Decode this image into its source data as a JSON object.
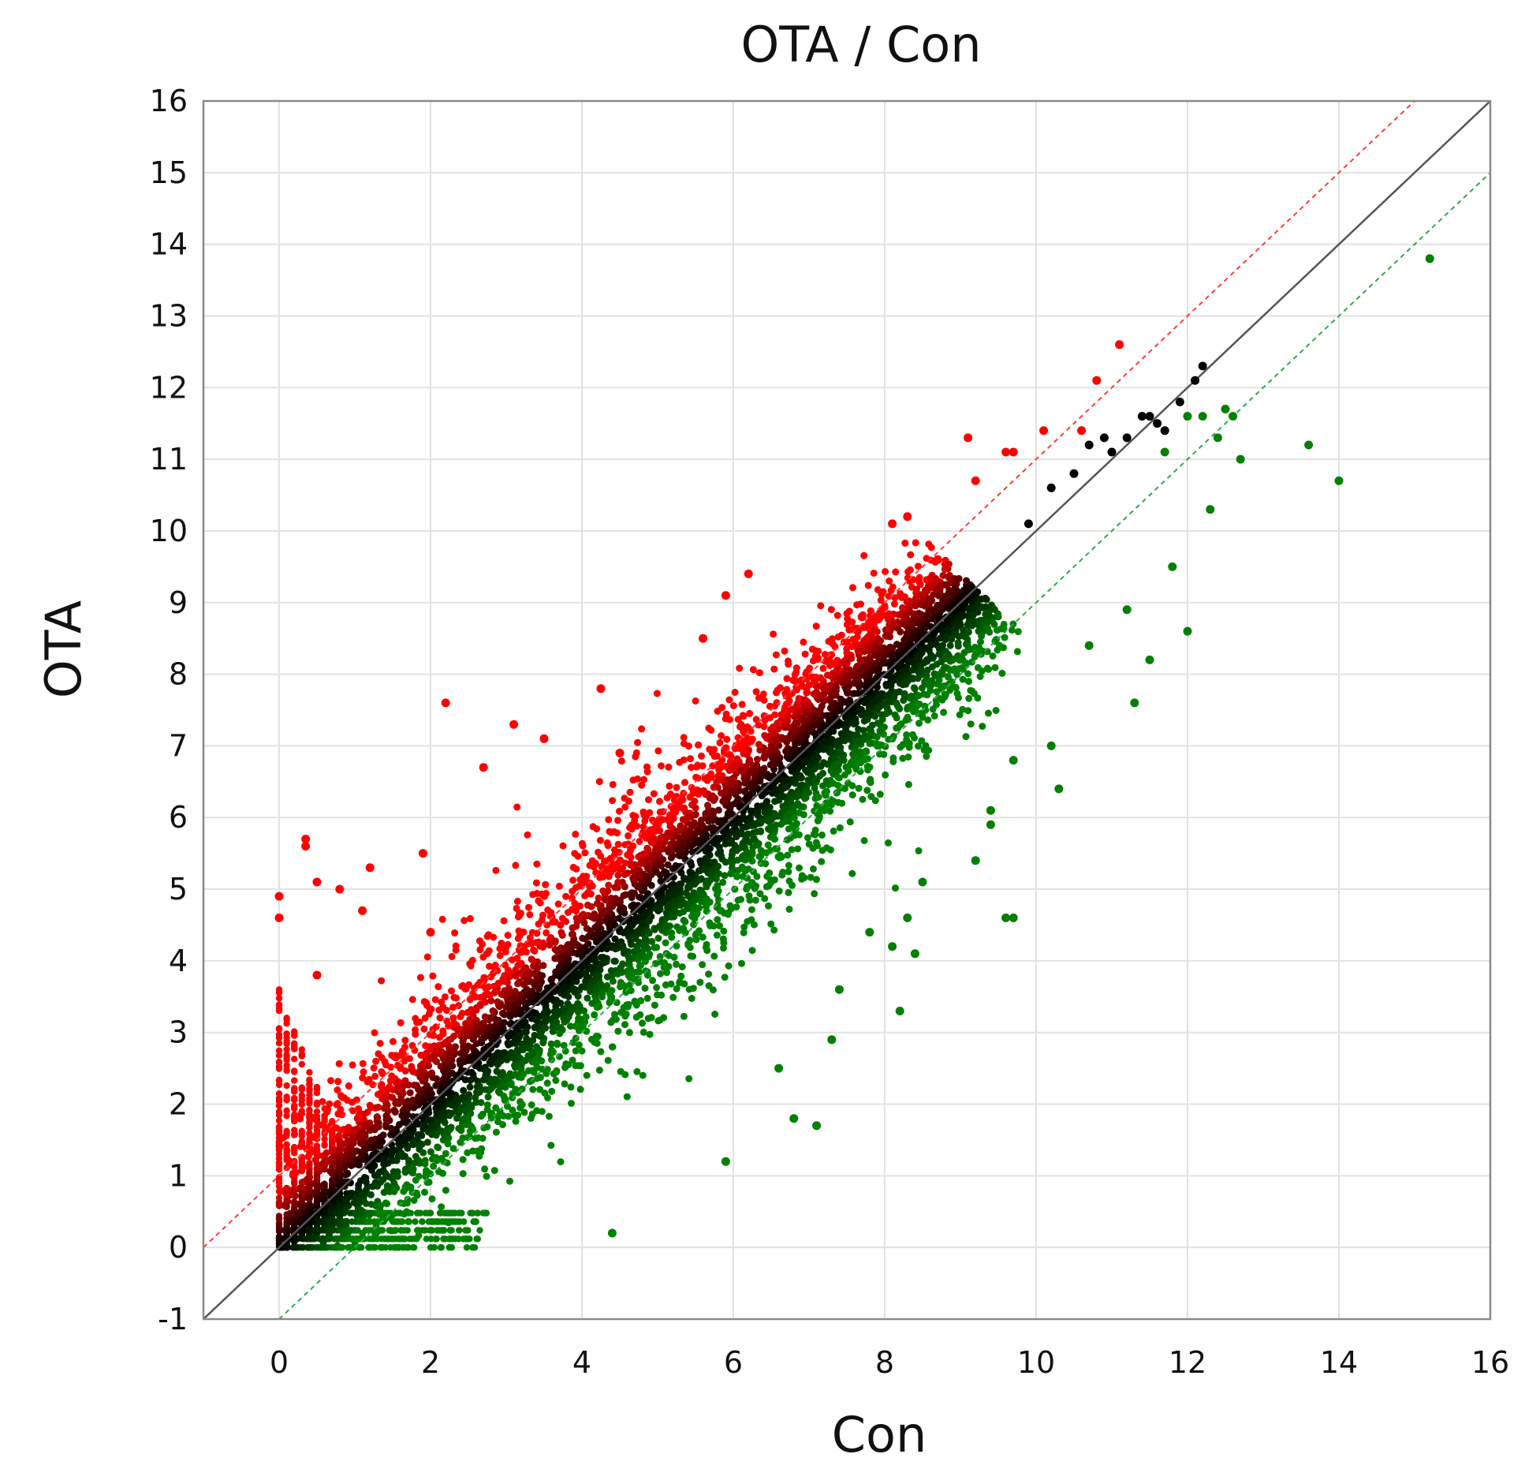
{
  "chart_data": {
    "type": "scatter",
    "title": "OTA / Con",
    "xlabel": "Con",
    "ylabel": "OTA",
    "xlim": [
      -1,
      16
    ],
    "ylim": [
      -1,
      16
    ],
    "x_ticks": [
      0,
      2,
      4,
      6,
      8,
      10,
      12,
      14,
      16
    ],
    "y_ticks": [
      -1,
      0,
      1,
      2,
      3,
      4,
      5,
      6,
      7,
      8,
      9,
      10,
      11,
      12,
      13,
      14,
      15,
      16
    ],
    "x_tick_labels": [
      "0",
      "2",
      "4",
      "6",
      "8",
      "10",
      "12",
      "14",
      "16"
    ],
    "y_tick_labels": [
      "-1",
      "0",
      "1",
      "2",
      "3",
      "4",
      "5",
      "6",
      "7",
      "8",
      "9",
      "10",
      "11",
      "12",
      "13",
      "14",
      "15",
      "16"
    ],
    "grid": true,
    "reference_lines": [
      {
        "intercept": 0,
        "slope": 1,
        "color": "#555555",
        "style": "solid"
      },
      {
        "intercept": 1,
        "slope": 1,
        "color": "#ff3b3b",
        "style": "dashed"
      },
      {
        "intercept": -1,
        "slope": 1,
        "color": "#2fa84f",
        "style": "dashed"
      }
    ],
    "colors": {
      "up": "#ff0000",
      "down": "#008000",
      "unchanged": "#000000"
    },
    "points": [
      [
        0,
        4.9,
        "r"
      ],
      [
        0,
        4.6,
        "r"
      ],
      [
        0.35,
        5.6,
        "r"
      ],
      [
        0.35,
        5.7,
        "r"
      ],
      [
        0.5,
        5.1,
        "r"
      ],
      [
        0.8,
        5.0,
        "r"
      ],
      [
        1.2,
        5.3,
        "r"
      ],
      [
        1.9,
        5.5,
        "r"
      ],
      [
        2.2,
        7.6,
        "r"
      ],
      [
        2.7,
        6.7,
        "r"
      ],
      [
        3.1,
        7.3,
        "r"
      ],
      [
        3.5,
        7.1,
        "r"
      ],
      [
        4.25,
        7.8,
        "r"
      ],
      [
        5.6,
        8.5,
        "r"
      ],
      [
        5.9,
        9.1,
        "r"
      ],
      [
        6.2,
        9.4,
        "r"
      ],
      [
        8.1,
        10.1,
        "r"
      ],
      [
        8.3,
        10.2,
        "r"
      ],
      [
        9.1,
        11.3,
        "r"
      ],
      [
        9.6,
        11.1,
        "r"
      ],
      [
        9.7,
        11.1,
        "r"
      ],
      [
        10.1,
        11.4,
        "r"
      ],
      [
        10.6,
        11.4,
        "r"
      ],
      [
        10.8,
        12.1,
        "r"
      ],
      [
        11.1,
        12.6,
        "r"
      ],
      [
        9.2,
        10.7,
        "r"
      ],
      [
        8.7,
        9.6,
        "r"
      ],
      [
        7.7,
        8.8,
        "r"
      ],
      [
        4.5,
        6.9,
        "r"
      ],
      [
        1.1,
        4.7,
        "r"
      ],
      [
        0.5,
        3.8,
        "r"
      ],
      [
        2.0,
        4.4,
        "r"
      ],
      [
        10.7,
        11.2,
        "k"
      ],
      [
        10.9,
        11.3,
        "k"
      ],
      [
        11.0,
        11.1,
        "k"
      ],
      [
        11.2,
        11.3,
        "k"
      ],
      [
        11.4,
        11.6,
        "k"
      ],
      [
        11.5,
        11.6,
        "k"
      ],
      [
        11.7,
        11.4,
        "k"
      ],
      [
        11.9,
        11.8,
        "k"
      ],
      [
        12.1,
        12.1,
        "k"
      ],
      [
        12.2,
        12.3,
        "k"
      ],
      [
        10.2,
        10.6,
        "k"
      ],
      [
        10.5,
        10.8,
        "k"
      ],
      [
        11.6,
        11.5,
        "k"
      ],
      [
        9.9,
        10.1,
        "k"
      ],
      [
        15.2,
        13.8,
        "g"
      ],
      [
        13.6,
        11.2,
        "g"
      ],
      [
        14.0,
        10.7,
        "g"
      ],
      [
        12.7,
        11.0,
        "g"
      ],
      [
        12.3,
        10.3,
        "g"
      ],
      [
        12.0,
        8.6,
        "g"
      ],
      [
        11.8,
        9.5,
        "g"
      ],
      [
        11.5,
        8.2,
        "g"
      ],
      [
        11.3,
        7.6,
        "g"
      ],
      [
        11.2,
        8.9,
        "g"
      ],
      [
        10.7,
        8.4,
        "g"
      ],
      [
        10.2,
        7.0,
        "g"
      ],
      [
        10.3,
        6.4,
        "g"
      ],
      [
        9.7,
        6.8,
        "g"
      ],
      [
        9.4,
        6.1,
        "g"
      ],
      [
        9.4,
        5.9,
        "g"
      ],
      [
        9.2,
        5.4,
        "g"
      ],
      [
        9.6,
        4.6,
        "g"
      ],
      [
        9.7,
        4.6,
        "g"
      ],
      [
        8.5,
        5.1,
        "g"
      ],
      [
        8.3,
        4.6,
        "g"
      ],
      [
        8.4,
        4.1,
        "g"
      ],
      [
        8.1,
        4.2,
        "g"
      ],
      [
        7.8,
        4.4,
        "g"
      ],
      [
        8.2,
        3.3,
        "g"
      ],
      [
        7.4,
        3.6,
        "g"
      ],
      [
        7.3,
        2.9,
        "g"
      ],
      [
        7.1,
        1.7,
        "g"
      ],
      [
        6.8,
        1.8,
        "g"
      ],
      [
        6.6,
        2.5,
        "g"
      ],
      [
        5.9,
        1.2,
        "g"
      ],
      [
        4.4,
        0.2,
        "g"
      ],
      [
        12.4,
        11.3,
        "g"
      ],
      [
        12.6,
        11.6,
        "g"
      ],
      [
        12.5,
        11.7,
        "g"
      ],
      [
        12.2,
        11.6,
        "g"
      ],
      [
        12.0,
        11.6,
        "g"
      ],
      [
        11.7,
        11.1,
        "g"
      ]
    ]
  }
}
